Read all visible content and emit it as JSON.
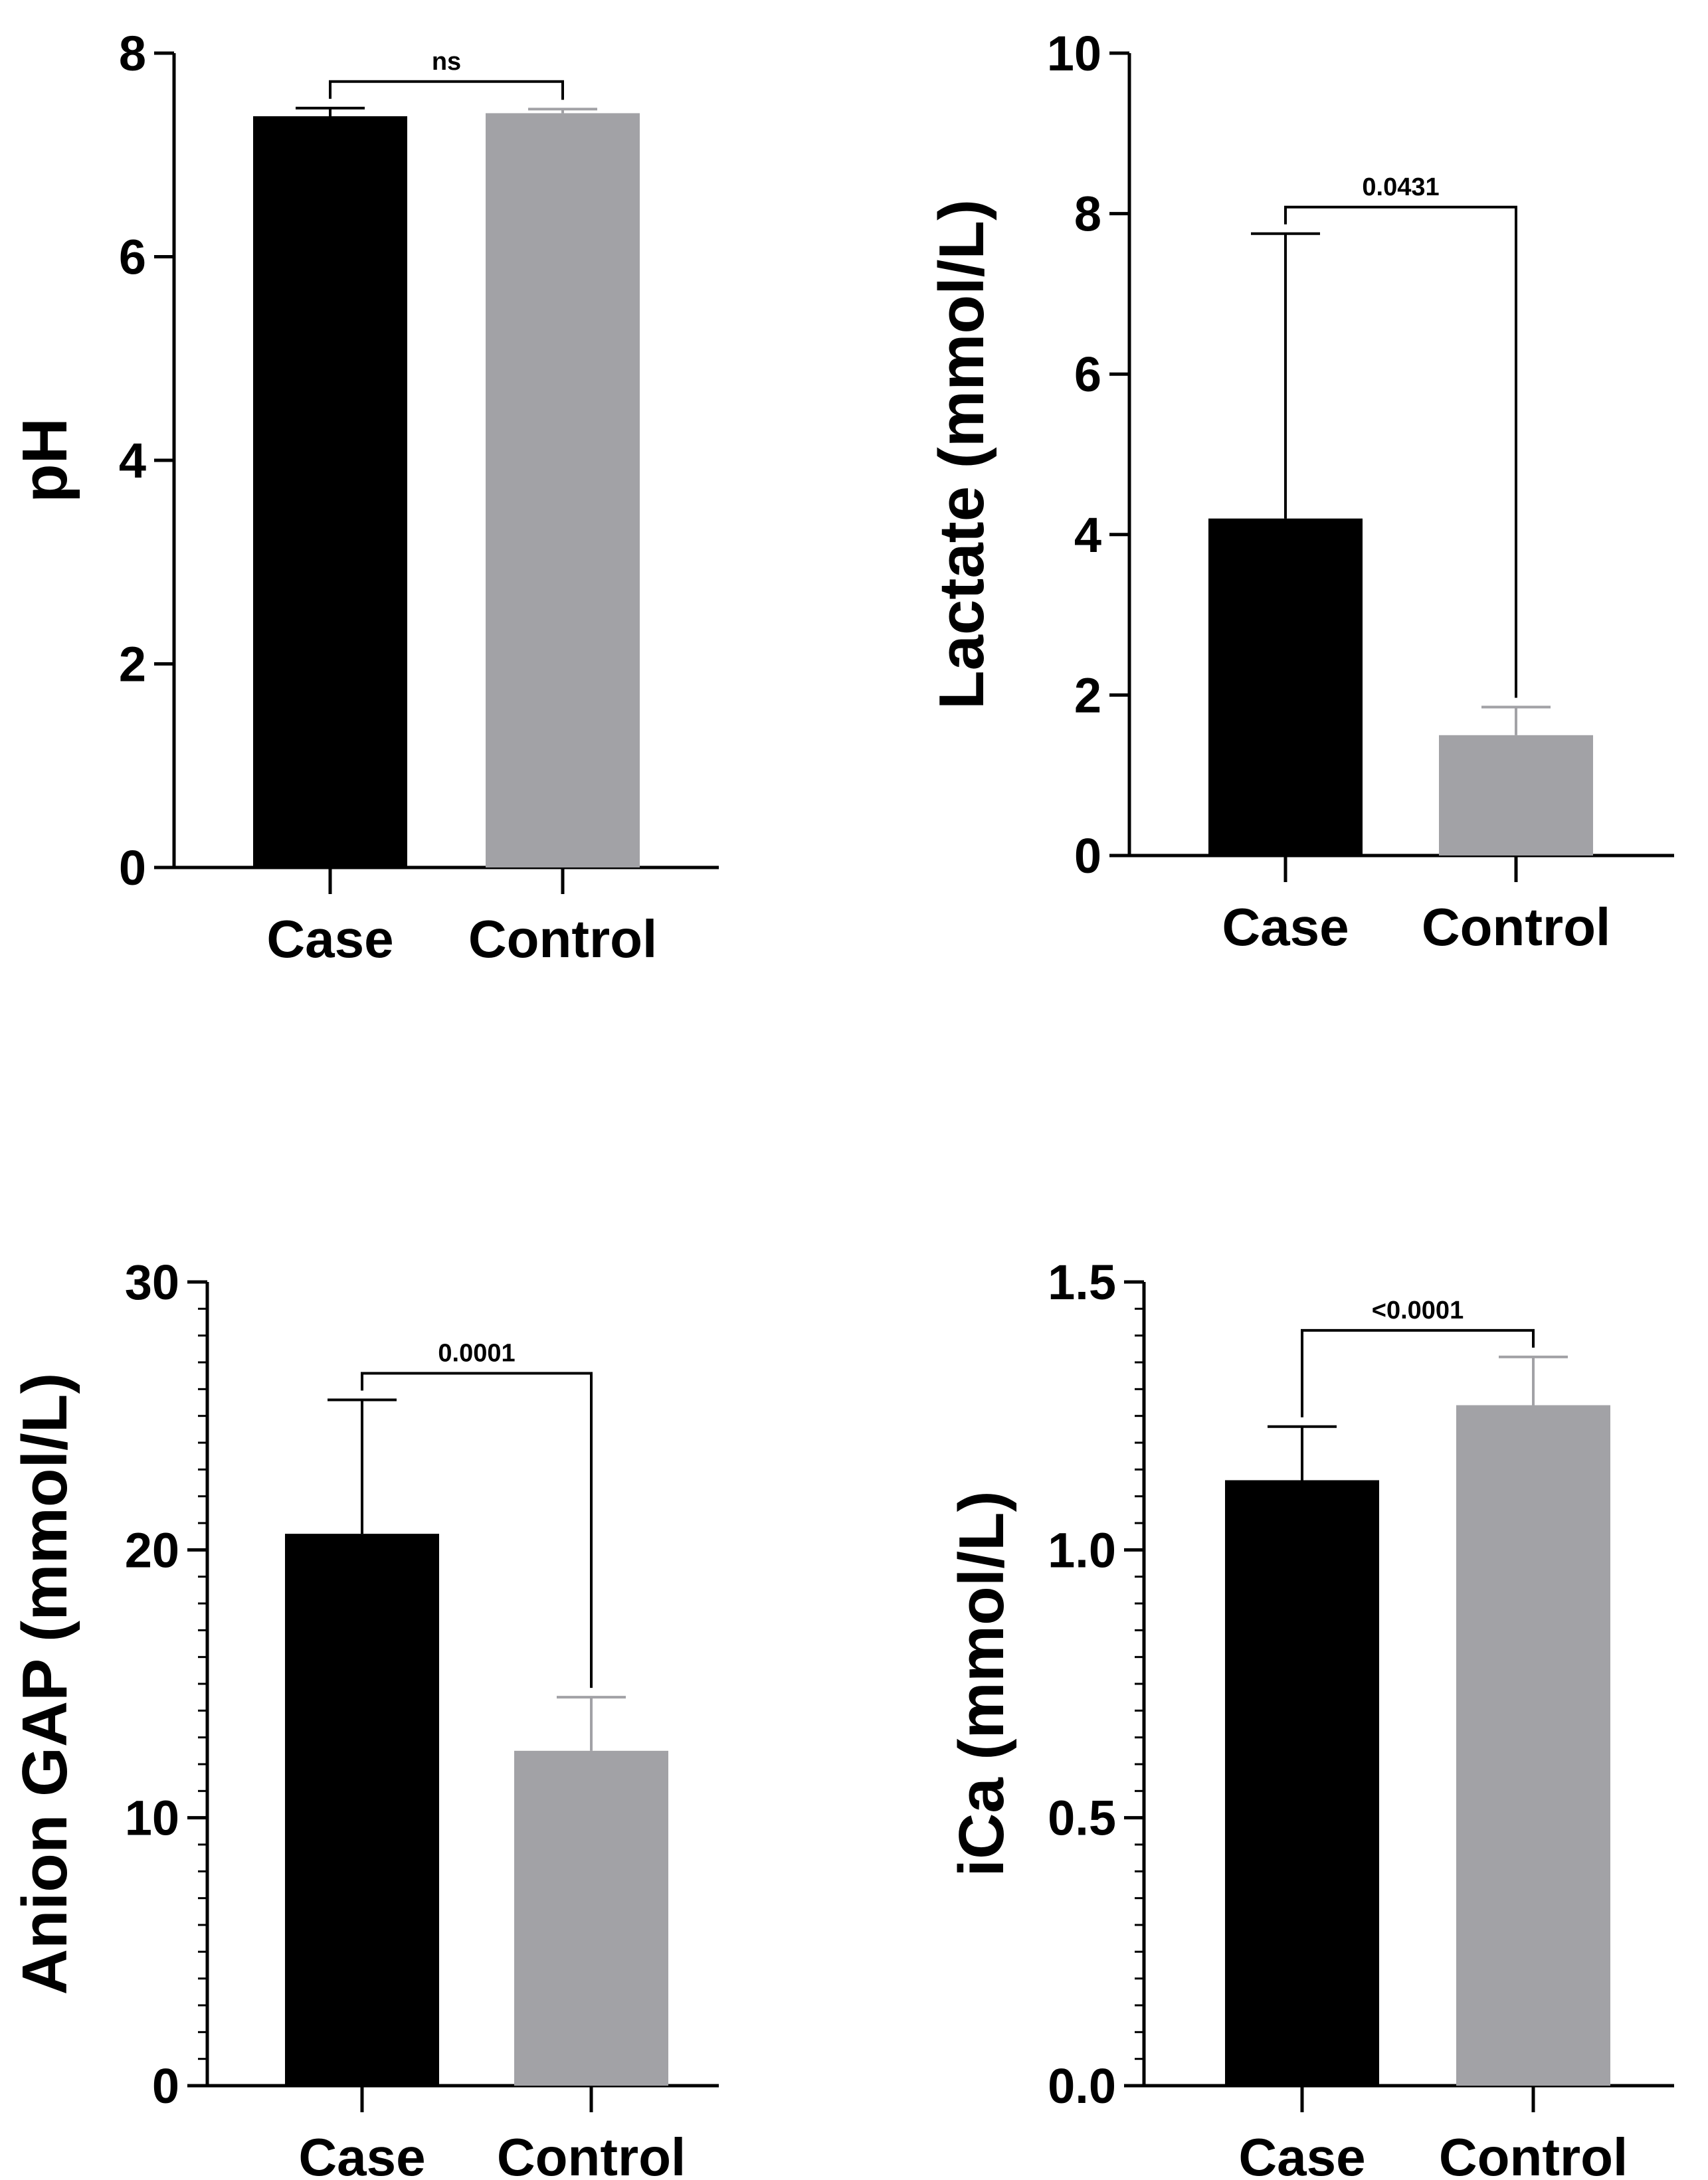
{
  "chart_data": [
    {
      "type": "bar",
      "ylabel": "pH",
      "categories": [
        "Case",
        "Control"
      ],
      "values": [
        7.38,
        7.41
      ],
      "errors": [
        0.08,
        0.04
      ],
      "colors": [
        "#000000",
        "#a2a2a6"
      ],
      "ylim": [
        0,
        8
      ],
      "yticks": [
        0,
        2,
        4,
        6,
        8
      ],
      "ytick_labels": [
        "0",
        "2",
        "4",
        "6",
        "8"
      ],
      "minor_ticks": false,
      "significance": "ns"
    },
    {
      "type": "bar",
      "ylabel": "Lactate (mmol/L)",
      "categories": [
        "Case",
        "Control"
      ],
      "values": [
        4.2,
        1.5
      ],
      "errors": [
        3.55,
        0.35
      ],
      "colors": [
        "#000000",
        "#a2a2a6"
      ],
      "ylim": [
        0,
        10
      ],
      "yticks": [
        0,
        2,
        4,
        6,
        8,
        10
      ],
      "ytick_labels": [
        "0",
        "2",
        "4",
        "6",
        "8",
        "10"
      ],
      "minor_ticks": false,
      "significance": "0.0431"
    },
    {
      "type": "bar",
      "ylabel": "Anion GAP (mmol/L)",
      "categories": [
        "Case",
        "Control"
      ],
      "values": [
        20.6,
        12.5
      ],
      "errors": [
        5.0,
        2.0
      ],
      "colors": [
        "#000000",
        "#a2a2a6"
      ],
      "ylim": [
        0,
        30
      ],
      "yticks": [
        0,
        10,
        20,
        30
      ],
      "ytick_labels": [
        "0",
        "10",
        "20",
        "30"
      ],
      "minor_ticks": true,
      "significance": "0.0001"
    },
    {
      "type": "bar",
      "ylabel": "iCa (mmol/L)",
      "categories": [
        "Case",
        "Control"
      ],
      "values": [
        1.13,
        1.27
      ],
      "errors": [
        0.1,
        0.09
      ],
      "colors": [
        "#000000",
        "#a2a2a6"
      ],
      "ylim": [
        0,
        1.5
      ],
      "yticks": [
        0,
        0.5,
        1.0,
        1.5
      ],
      "ytick_labels": [
        "0.0",
        "0.5",
        "1.0",
        "1.5"
      ],
      "minor_ticks": true,
      "significance": "<0.0001"
    }
  ]
}
